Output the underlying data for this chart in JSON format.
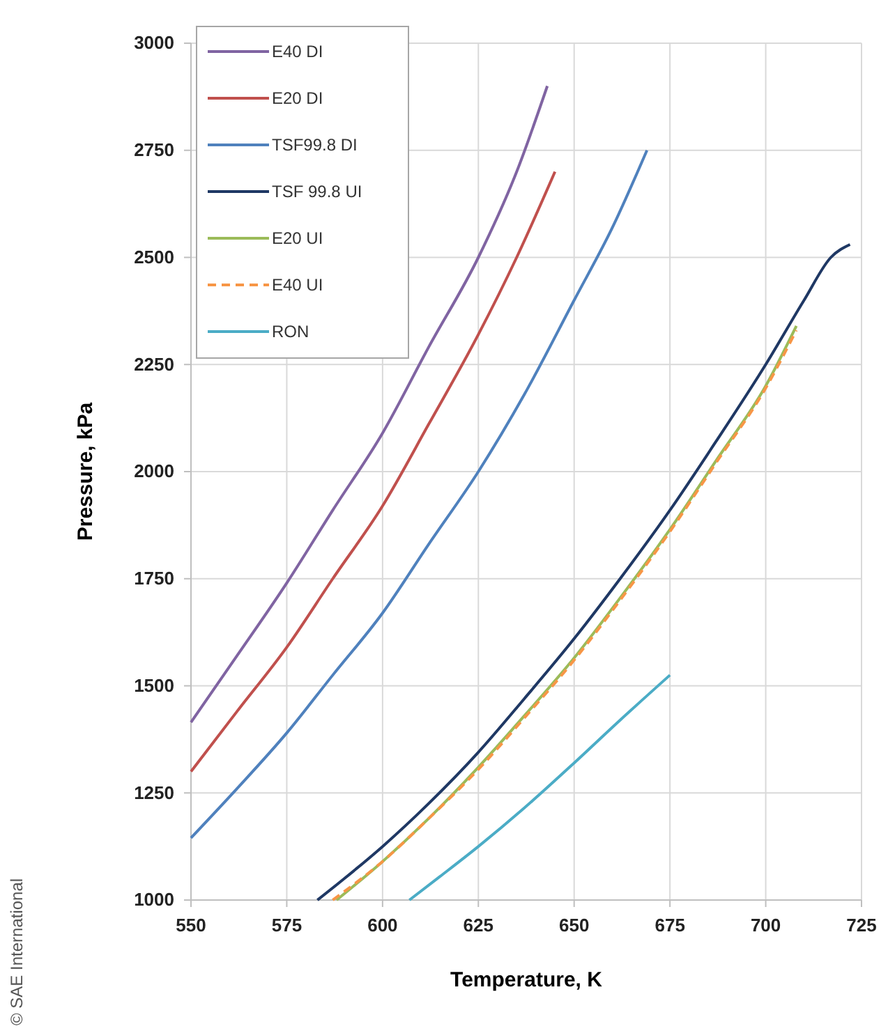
{
  "chart_data": {
    "type": "line",
    "xlabel": "Temperature, K",
    "ylabel": "Pressure, kPa",
    "xlim": [
      550,
      725
    ],
    "xticks": [
      550,
      575,
      600,
      625,
      650,
      675,
      700,
      725
    ],
    "ylim": [
      1000,
      3000
    ],
    "yticks": [
      1000,
      1250,
      1500,
      1750,
      2000,
      2250,
      2500,
      2750,
      3000
    ],
    "grid": true,
    "legend": "top left",
    "marker": "none",
    "annotations": [
      "© SAE International"
    ],
    "series": [
      {
        "name": "E40 DI",
        "color": "#8064a2",
        "x": [
          550,
          562,
          575,
          587,
          600,
          612,
          625,
          635,
          643
        ],
        "values": [
          1415,
          1570,
          1740,
          1910,
          2090,
          2290,
          2500,
          2700,
          2900
        ]
      },
      {
        "name": "E20 DI",
        "color": "#c0504d",
        "x": [
          550,
          562,
          575,
          587,
          600,
          612,
          625,
          635,
          645
        ],
        "values": [
          1300,
          1440,
          1590,
          1750,
          1920,
          2110,
          2320,
          2500,
          2700
        ]
      },
      {
        "name": "TSF99.8 DI",
        "color": "#4f81bd",
        "x": [
          550,
          562,
          575,
          587,
          600,
          612,
          625,
          637,
          650,
          660,
          669
        ],
        "values": [
          1145,
          1260,
          1390,
          1525,
          1670,
          1830,
          2000,
          2180,
          2400,
          2570,
          2750
        ]
      },
      {
        "name": "TSF 99.8 UI",
        "color": "#1f3864",
        "x": [
          583,
          590,
          600,
          612,
          625,
          637,
          650,
          662,
          675,
          687,
          700,
          710,
          717,
          722
        ],
        "values": [
          1000,
          1050,
          1125,
          1225,
          1345,
          1470,
          1610,
          1750,
          1910,
          2070,
          2250,
          2400,
          2500,
          2530
        ]
      },
      {
        "name": "E20 UI",
        "color": "#9bbb59",
        "x": [
          588,
          600,
          612,
          625,
          637,
          650,
          662,
          675,
          687,
          700,
          708
        ],
        "values": [
          1000,
          1090,
          1190,
          1310,
          1430,
          1565,
          1705,
          1865,
          2025,
          2200,
          2340
        ]
      },
      {
        "name": "E40 UI",
        "color": "#f79646",
        "line_style": "dashed",
        "x": [
          587,
          600,
          612,
          625,
          637,
          650,
          662,
          675,
          687,
          700,
          708
        ],
        "values": [
          1000,
          1090,
          1190,
          1305,
          1425,
          1560,
          1700,
          1860,
          2020,
          2195,
          2330
        ]
      },
      {
        "name": "RON",
        "color": "#4bacc6",
        "x": [
          607,
          615,
          625,
          637,
          650,
          662,
          675
        ],
        "values": [
          1000,
          1055,
          1125,
          1215,
          1320,
          1420,
          1525
        ]
      }
    ]
  }
}
